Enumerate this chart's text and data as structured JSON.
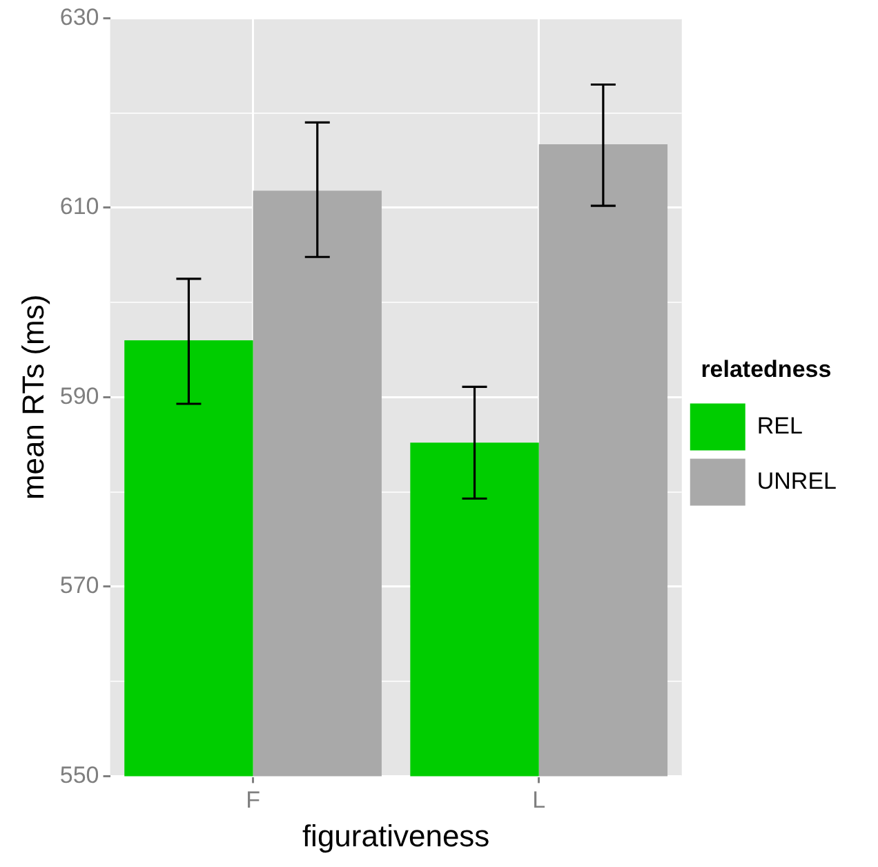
{
  "chart_data": {
    "type": "bar",
    "xlabel": "figurativeness",
    "ylabel": "mean RTs (ms)",
    "legend_title": "relatedness",
    "categories": [
      "F",
      "L"
    ],
    "series": [
      {
        "name": "REL",
        "color": "#00cd00",
        "values": [
          596.0,
          585.2
        ],
        "errors": [
          [
            589.3,
            602.5
          ],
          [
            579.3,
            591.1
          ]
        ]
      },
      {
        "name": "UNREL",
        "color": "#a9a9a9",
        "values": [
          611.8,
          616.7
        ],
        "errors": [
          [
            604.8,
            619.0
          ],
          [
            610.2,
            623.0
          ]
        ]
      }
    ],
    "ylim": [
      550,
      630
    ],
    "yticks": [
      550,
      {
        "value": 560,
        "label": null
      },
      570,
      {
        "value": 580,
        "label": null
      },
      590,
      {
        "value": 600,
        "label": null
      },
      610,
      {
        "value": 620,
        "label": null
      },
      630
    ],
    "grid": true,
    "legend": "right"
  }
}
